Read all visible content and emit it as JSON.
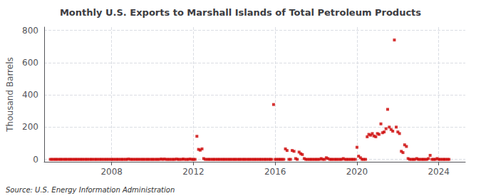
{
  "chart_data": {
    "type": "scatter",
    "title": "Monthly U.S. Exports to Marshall Islands of Total Petroleum Products",
    "y_label": "Thousand Barrels",
    "annotations": [
      "Source: U.S. Energy Information Administration"
    ],
    "color": "#cc0000",
    "marker": "square",
    "grid": true,
    "xlim": [
      2004.7,
      2025.3
    ],
    "xticks": [
      2008,
      2012,
      2016,
      2020,
      2024
    ],
    "ylim": [
      -15,
      820
    ],
    "yticks": [
      0,
      200,
      400,
      600,
      800
    ],
    "x": [
      2005.0,
      2005.08,
      2005.17,
      2005.25,
      2005.33,
      2005.42,
      2005.5,
      2005.58,
      2005.67,
      2005.75,
      2005.83,
      2005.92,
      2006.0,
      2006.08,
      2006.17,
      2006.25,
      2006.33,
      2006.42,
      2006.5,
      2006.58,
      2006.67,
      2006.75,
      2006.83,
      2006.92,
      2007.0,
      2007.08,
      2007.17,
      2007.25,
      2007.33,
      2007.42,
      2007.5,
      2007.58,
      2007.67,
      2007.75,
      2007.83,
      2007.92,
      2008.0,
      2008.08,
      2008.17,
      2008.25,
      2008.33,
      2008.42,
      2008.5,
      2008.58,
      2008.67,
      2008.75,
      2008.83,
      2008.92,
      2009.0,
      2009.08,
      2009.17,
      2009.25,
      2009.33,
      2009.42,
      2009.5,
      2009.58,
      2009.67,
      2009.75,
      2009.83,
      2009.92,
      2010.0,
      2010.08,
      2010.17,
      2010.25,
      2010.33,
      2010.42,
      2010.5,
      2010.58,
      2010.67,
      2010.75,
      2010.83,
      2010.92,
      2011.0,
      2011.08,
      2011.17,
      2011.25,
      2011.33,
      2011.42,
      2011.5,
      2011.58,
      2011.67,
      2011.75,
      2011.83,
      2011.92,
      2012.0,
      2012.08,
      2012.17,
      2012.25,
      2012.33,
      2012.42,
      2012.5,
      2012.58,
      2012.67,
      2012.75,
      2012.83,
      2012.92,
      2013.0,
      2013.08,
      2013.17,
      2013.25,
      2013.33,
      2013.42,
      2013.5,
      2013.58,
      2013.67,
      2013.75,
      2013.83,
      2013.92,
      2014.0,
      2014.08,
      2014.17,
      2014.25,
      2014.33,
      2014.42,
      2014.5,
      2014.58,
      2014.67,
      2014.75,
      2014.83,
      2014.92,
      2015.0,
      2015.08,
      2015.17,
      2015.25,
      2015.33,
      2015.42,
      2015.5,
      2015.58,
      2015.67,
      2015.75,
      2015.83,
      2015.92,
      2016.0,
      2016.08,
      2016.17,
      2016.25,
      2016.33,
      2016.42,
      2016.5,
      2016.58,
      2016.67,
      2016.75,
      2016.83,
      2016.92,
      2017.0,
      2017.08,
      2017.17,
      2017.25,
      2017.33,
      2017.42,
      2017.5,
      2017.58,
      2017.67,
      2017.75,
      2017.83,
      2017.92,
      2018.0,
      2018.08,
      2018.17,
      2018.25,
      2018.33,
      2018.42,
      2018.5,
      2018.58,
      2018.67,
      2018.75,
      2018.83,
      2018.92,
      2019.0,
      2019.08,
      2019.17,
      2019.25,
      2019.33,
      2019.42,
      2019.5,
      2019.58,
      2019.67,
      2019.75,
      2019.83,
      2019.92,
      2020.0,
      2020.08,
      2020.17,
      2020.25,
      2020.33,
      2020.42,
      2020.5,
      2020.58,
      2020.67,
      2020.75,
      2020.83,
      2020.92,
      2021.0,
      2021.08,
      2021.17,
      2021.25,
      2021.33,
      2021.42,
      2021.5,
      2021.58,
      2021.67,
      2021.75,
      2021.83,
      2021.92,
      2022.0,
      2022.08,
      2022.17,
      2022.25,
      2022.33,
      2022.42,
      2022.5,
      2022.58,
      2022.67,
      2022.75,
      2022.83,
      2022.92,
      2023.0,
      2023.08,
      2023.17,
      2023.25,
      2023.33,
      2023.42,
      2023.5,
      2023.58,
      2023.67,
      2023.75,
      2023.83,
      2023.92,
      2024.0,
      2024.08,
      2024.17,
      2024.25,
      2024.33,
      2024.42,
      2024.5
    ],
    "values": [
      0,
      0,
      0,
      0,
      0,
      0,
      0,
      0,
      0,
      0,
      0,
      0,
      0,
      0,
      0,
      0,
      0,
      0,
      0,
      0,
      0,
      0,
      0,
      0,
      0,
      0,
      0,
      0,
      0,
      0,
      0,
      0,
      0,
      0,
      0,
      0,
      0,
      0,
      0,
      0,
      0,
      0,
      0,
      0,
      0,
      0,
      2,
      0,
      0,
      0,
      0,
      0,
      0,
      0,
      0,
      0,
      0,
      0,
      0,
      0,
      0,
      0,
      0,
      0,
      0,
      2,
      0,
      2,
      0,
      0,
      0,
      0,
      0,
      0,
      2,
      0,
      0,
      0,
      2,
      0,
      0,
      0,
      2,
      0,
      0,
      0,
      143,
      62,
      57,
      65,
      5,
      0,
      0,
      0,
      0,
      0,
      0,
      0,
      0,
      0,
      0,
      0,
      0,
      0,
      0,
      0,
      0,
      0,
      0,
      0,
      0,
      0,
      0,
      0,
      0,
      0,
      0,
      0,
      0,
      0,
      0,
      0,
      0,
      0,
      0,
      0,
      0,
      0,
      0,
      0,
      0,
      340,
      0,
      0,
      0,
      0,
      0,
      0,
      65,
      55,
      0,
      0,
      55,
      50,
      5,
      0,
      45,
      35,
      30,
      5,
      0,
      0,
      0,
      0,
      0,
      0,
      0,
      0,
      0,
      5,
      0,
      0,
      10,
      5,
      0,
      0,
      0,
      0,
      0,
      0,
      0,
      0,
      5,
      0,
      0,
      0,
      0,
      0,
      0,
      0,
      75,
      20,
      10,
      0,
      0,
      0,
      140,
      155,
      150,
      160,
      145,
      140,
      160,
      155,
      220,
      165,
      170,
      190,
      310,
      200,
      185,
      175,
      740,
      200,
      170,
      160,
      50,
      42,
      90,
      80,
      5,
      0,
      0,
      0,
      0,
      5,
      0,
      0,
      0,
      0,
      0,
      0,
      5,
      25,
      0,
      0,
      0,
      5,
      0,
      0,
      0,
      0,
      0,
      0,
      0
    ]
  }
}
